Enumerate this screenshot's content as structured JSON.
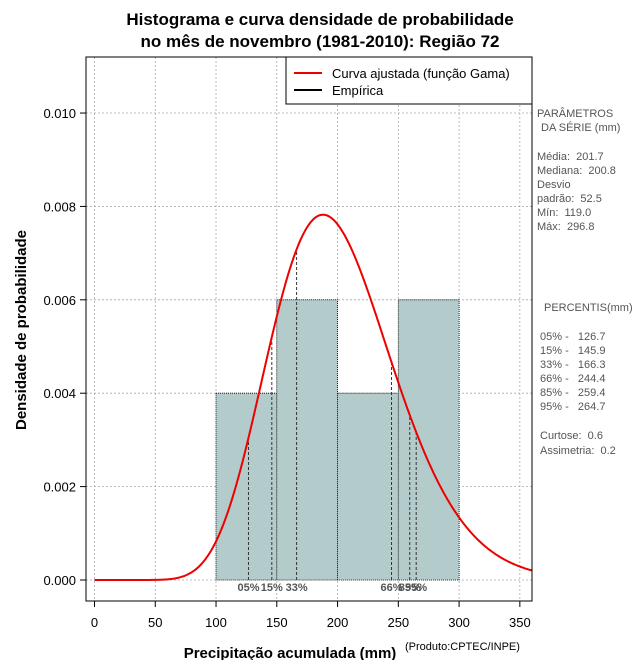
{
  "title": {
    "line1": "Histograma e curva densidade de probabilidade",
    "line2": "no mês de novembro (1981-2010): Região 72"
  },
  "credit": "(Produto:CPTEC/INPE)",
  "legend": {
    "fitted": "Curva ajustada (função Gama)",
    "empirical": "Empírica"
  },
  "params": {
    "header1": "PARÂMETROS",
    "header2": "DA SÉRIE (mm)",
    "media": "Média:  201.7",
    "mediana": "Mediana:  200.8",
    "desvio1": "Desvio",
    "desvio2": "padrão:  52.5",
    "min": "Mín:  119.0",
    "max": "Máx:  296.8"
  },
  "percentis": {
    "header": "PERCENTIS(mm)",
    "p05": "05% -   126.7",
    "p15": "15% -   145.9",
    "p33": "33% -   166.3",
    "p66": "66% -   244.4",
    "p85": "85% -   259.4",
    "p95": "95% -   264.7"
  },
  "stats": {
    "curtose": "Curtose:  0.6",
    "assimetria": "Assimetria:  0.2"
  },
  "colors": {
    "bar_fill": "#b3cccb",
    "curve": "#ee0000",
    "grid": "#aaaaaa"
  },
  "chart_data": {
    "type": "bar",
    "title": "Histograma e curva densidade de probabilidade no mês de novembro (1981-2010): Região 72",
    "xlabel": "Precipitação acumulada (mm)",
    "ylabel": "Densidade de probabilidade",
    "xlim": [
      -7,
      360
    ],
    "ylim": [
      -0.00045,
      0.0112
    ],
    "xticks": [
      0,
      50,
      100,
      150,
      200,
      250,
      300,
      350
    ],
    "yticks": [
      0.0,
      0.002,
      0.004,
      0.006,
      0.008,
      0.01
    ],
    "ytick_labels": [
      "0.000",
      "0.002",
      "0.004",
      "0.006",
      "0.008",
      "0.010"
    ],
    "bins": [
      {
        "start": 100,
        "end": 150,
        "density": 0.004
      },
      {
        "start": 150,
        "end": 200,
        "density": 0.006
      },
      {
        "start": 200,
        "end": 250,
        "density": 0.004
      },
      {
        "start": 250,
        "end": 300,
        "density": 0.006
      }
    ],
    "gamma_fit": {
      "mean": 201.7,
      "sd": 52.5,
      "x_from": 0,
      "x_to": 360
    },
    "percentiles": [
      {
        "label": "05%",
        "value": 126.7
      },
      {
        "label": "15%",
        "value": 145.9
      },
      {
        "label": "33%",
        "value": 166.3
      },
      {
        "label": "66%",
        "value": 244.4
      },
      {
        "label": "85%",
        "value": 259.4
      },
      {
        "label": "95%",
        "value": 264.7
      }
    ],
    "grid": true,
    "legend_position": "top-right"
  }
}
